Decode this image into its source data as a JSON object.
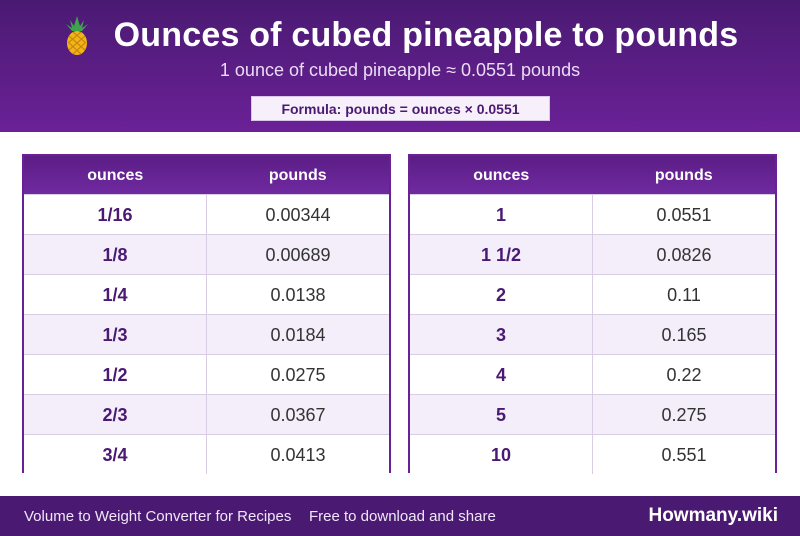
{
  "header": {
    "title": "Ounces of cubed pineapple to pounds",
    "subtitle": "1 ounce of cubed pineapple ≈ 0.0551 pounds",
    "formula": "Formula: pounds = ounces × 0.0551",
    "icon": "pineapple-icon"
  },
  "tables": [
    {
      "headers": [
        "ounces",
        "pounds"
      ],
      "rows": [
        {
          "ounces": "1/16",
          "pounds": "0.00344"
        },
        {
          "ounces": "1/8",
          "pounds": "0.00689"
        },
        {
          "ounces": "1/4",
          "pounds": "0.0138"
        },
        {
          "ounces": "1/3",
          "pounds": "0.0184"
        },
        {
          "ounces": "1/2",
          "pounds": "0.0275"
        },
        {
          "ounces": "2/3",
          "pounds": "0.0367"
        },
        {
          "ounces": "3/4",
          "pounds": "0.0413"
        }
      ]
    },
    {
      "headers": [
        "ounces",
        "pounds"
      ],
      "rows": [
        {
          "ounces": "1",
          "pounds": "0.0551"
        },
        {
          "ounces": "1 1/2",
          "pounds": "0.0826"
        },
        {
          "ounces": "2",
          "pounds": "0.11"
        },
        {
          "ounces": "3",
          "pounds": "0.165"
        },
        {
          "ounces": "4",
          "pounds": "0.22"
        },
        {
          "ounces": "5",
          "pounds": "0.275"
        },
        {
          "ounces": "10",
          "pounds": "0.551"
        }
      ]
    }
  ],
  "footer": {
    "app_name": "Volume to Weight Converter for Recipes",
    "share": "Free to download and share",
    "brand": "Howmany.wiki"
  },
  "colors": {
    "brand_purple": "#4a1a72",
    "header_purple": "#6a2196",
    "row_alt": "#f3eefa"
  }
}
